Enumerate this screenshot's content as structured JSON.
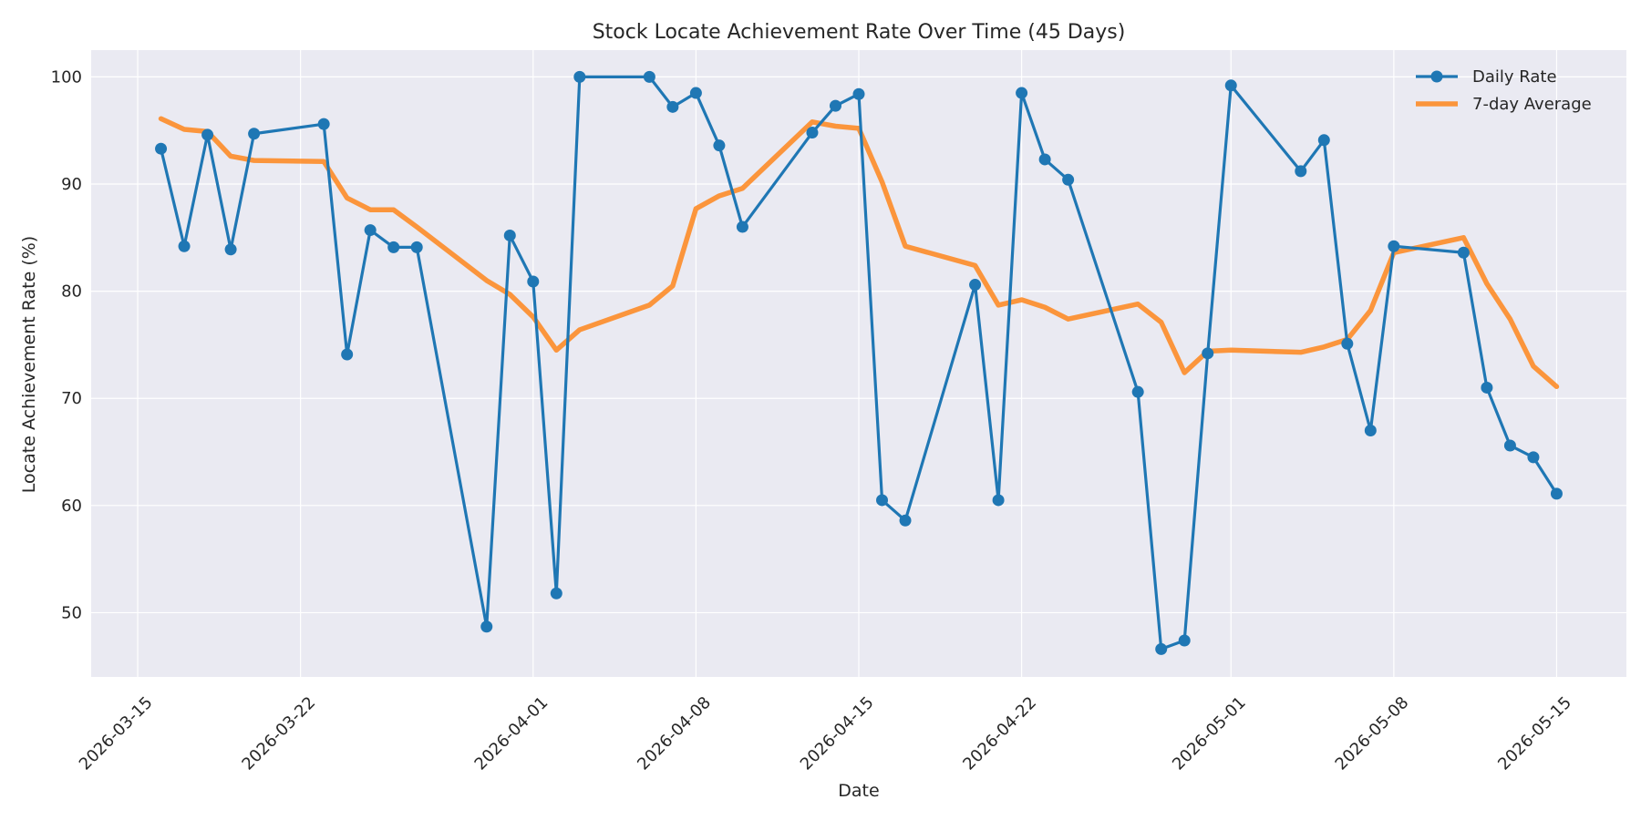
{
  "chart_data": {
    "type": "line",
    "title": "Stock Locate Achievement Rate Over Time (45 Days)",
    "xlabel": "Date",
    "ylabel": "Locate Achievement Rate (%)",
    "xlim": [
      "2026-03-13",
      "2026-05-18"
    ],
    "ylim": [
      44,
      102.5
    ],
    "x_ticks": [
      "2026-03-15",
      "2026-03-22",
      "2026-04-01",
      "2026-04-08",
      "2026-04-15",
      "2026-04-22",
      "2026-05-01",
      "2026-05-08",
      "2026-05-15"
    ],
    "y_ticks": [
      50,
      60,
      70,
      80,
      90,
      100
    ],
    "grid": true,
    "legend_position": "top-right",
    "x": [
      "2026-03-16",
      "2026-03-17",
      "2026-03-18",
      "2026-03-19",
      "2026-03-20",
      "2026-03-23",
      "2026-03-24",
      "2026-03-25",
      "2026-03-26",
      "2026-03-27",
      "2026-03-30",
      "2026-03-31",
      "2026-04-01",
      "2026-04-02",
      "2026-04-03",
      "2026-04-06",
      "2026-04-07",
      "2026-04-08",
      "2026-04-09",
      "2026-04-10",
      "2026-04-13",
      "2026-04-14",
      "2026-04-15",
      "2026-04-16",
      "2026-04-17",
      "2026-04-20",
      "2026-04-21",
      "2026-04-22",
      "2026-04-23",
      "2026-04-24",
      "2026-04-27",
      "2026-04-28",
      "2026-04-29",
      "2026-04-30",
      "2026-05-01",
      "2026-05-04",
      "2026-05-05",
      "2026-05-06",
      "2026-05-07",
      "2026-05-08",
      "2026-05-11",
      "2026-05-12",
      "2026-05-13",
      "2026-05-14",
      "2026-05-15"
    ],
    "series": [
      {
        "name": "Daily Rate",
        "color": "#1f77b4",
        "marker": "circle",
        "values": [
          93.3,
          84.2,
          94.6,
          83.9,
          94.7,
          95.6,
          74.1,
          85.7,
          84.1,
          84.1,
          48.7,
          85.2,
          80.9,
          51.8,
          100.0,
          100.0,
          97.2,
          98.5,
          93.6,
          86.0,
          94.8,
          97.3,
          98.4,
          60.5,
          58.6,
          80.6,
          60.5,
          98.5,
          92.3,
          90.4,
          70.6,
          46.6,
          47.4,
          74.2,
          99.2,
          91.2,
          94.1,
          75.1,
          67.0,
          84.2,
          83.6,
          71.0,
          65.6,
          64.5,
          61.1
        ]
      },
      {
        "name": "7-day Average",
        "color": "#ff7f0e",
        "marker": "none",
        "values": [
          96.1,
          95.1,
          94.9,
          92.6,
          92.2,
          92.1,
          88.7,
          87.6,
          87.6,
          86.0,
          81.0,
          79.7,
          77.6,
          74.5,
          76.4,
          78.7,
          80.5,
          87.7,
          88.9,
          89.6,
          95.8,
          95.4,
          95.2,
          90.2,
          84.2,
          82.4,
          78.7,
          79.2,
          78.5,
          77.4,
          78.8,
          77.1,
          72.4,
          74.4,
          74.5,
          74.3,
          74.8,
          75.5,
          78.2,
          83.6,
          85.0,
          80.7,
          77.4,
          73.0,
          71.1
        ]
      }
    ]
  }
}
